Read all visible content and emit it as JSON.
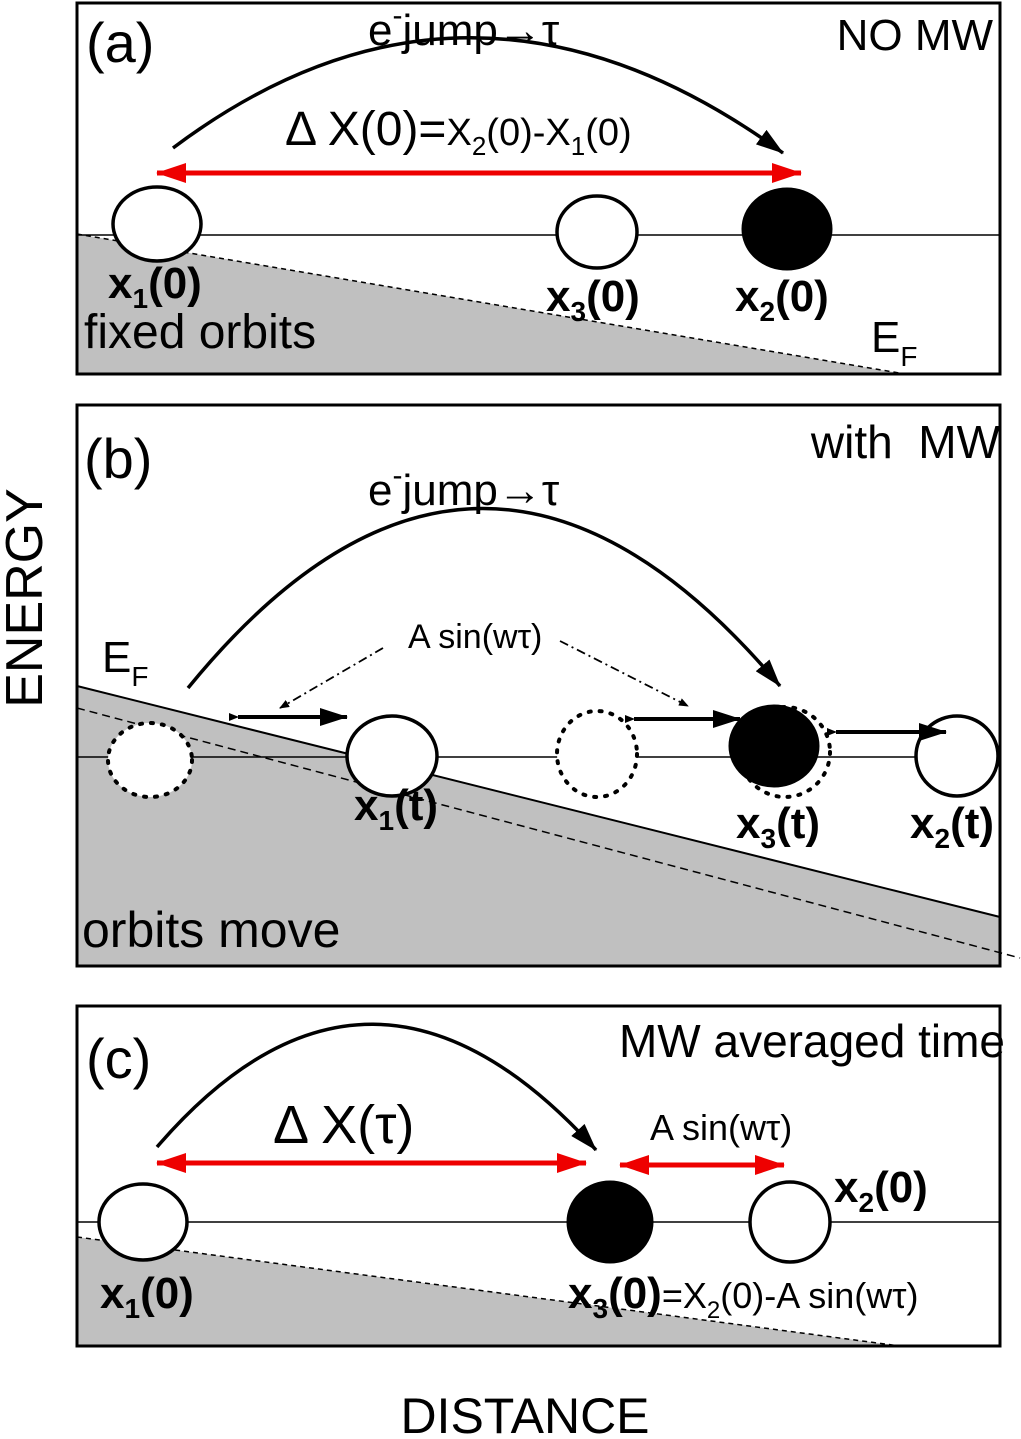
{
  "axes": {
    "ylabel": "ENERGY",
    "xlabel": "DISTANCE"
  },
  "panel_a": {
    "letter": "(a)",
    "condition": "NO MW",
    "jump_main": "e",
    "jump_sup": "-",
    "jump_rest": "jump→τ",
    "delta_lhs": "Δ X(0)=",
    "delta_rhs": {
      "p1": "X",
      "s1": "2",
      "p2": "(0)-X",
      "s2": "1",
      "p3": "(0)"
    },
    "orbit_x1": {
      "main": "x",
      "sub": "1",
      "arg": "(0)"
    },
    "orbit_x3": {
      "main": "x",
      "sub": "3",
      "arg": "(0)"
    },
    "orbit_x2": {
      "main": "x",
      "sub": "2",
      "arg": "(0)"
    },
    "fermi": {
      "main": "E",
      "sub": "F"
    },
    "caption": "fixed orbits"
  },
  "panel_b": {
    "letter": "(b)",
    "condition": "with  MW",
    "jump_main": "e",
    "jump_sup": "-",
    "jump_rest": "jump→τ",
    "amp": "A sin(wτ)",
    "fermi": {
      "main": "E",
      "sub": "F"
    },
    "orbit_x1": {
      "main": "x",
      "sub": "1",
      "arg": "(t)"
    },
    "orbit_x3": {
      "main": "x",
      "sub": "3",
      "arg": "(t)"
    },
    "orbit_x2": {
      "main": "x",
      "sub": "2",
      "arg": "(t)"
    },
    "caption": "orbits move"
  },
  "panel_c": {
    "letter": "(c)",
    "condition": "MW averaged time",
    "delta": "Δ X(τ)",
    "amp": "A sin(wτ)",
    "orbit_x2": {
      "main": "x",
      "sub": "2",
      "arg": "(0)"
    },
    "orbit_x1": {
      "main": "x",
      "sub": "1",
      "arg": "(0)"
    },
    "orbit_x3": {
      "main": "x",
      "sub": "3",
      "arg": "(0)"
    },
    "x3_formula": {
      "p1": "=X",
      "s1": "2",
      "p2": "(0)-A sin(wτ)"
    }
  },
  "colors": {
    "shade": "#c0c0c0",
    "arrow_red": "#ee0000",
    "ink": "#000000"
  }
}
